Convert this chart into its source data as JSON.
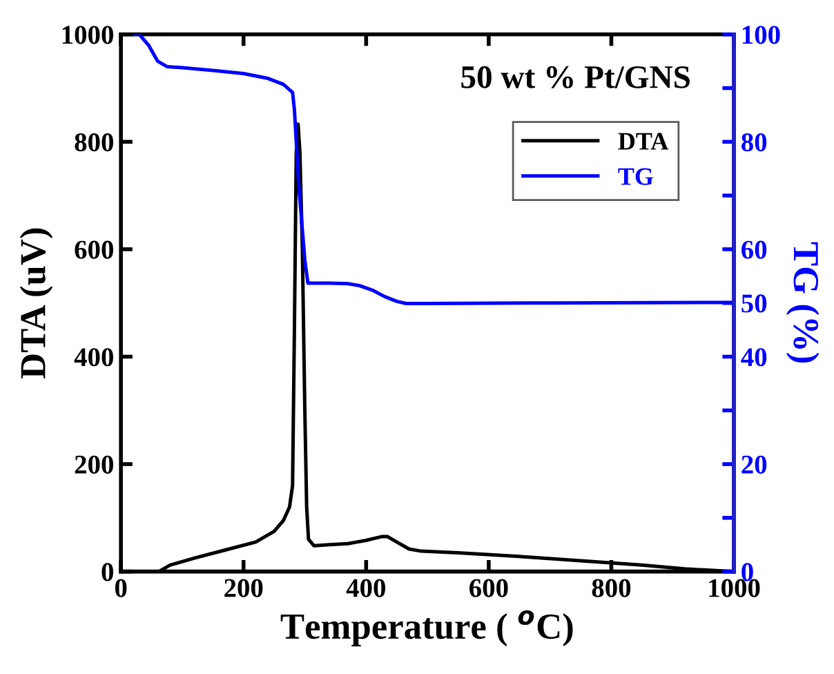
{
  "chart_data": {
    "type": "line",
    "title": "50 wt % Pt/GNS",
    "xlabel": "Temperature ( $^{o}$C)",
    "ylabel": "DTA (uV)",
    "y2label": "TG (%)",
    "xlim": [
      0,
      1000
    ],
    "xticks": [
      0,
      200,
      400,
      600,
      800,
      1000
    ],
    "ylim": [
      0,
      1000
    ],
    "yticks": [
      0,
      200,
      400,
      600,
      800,
      1000
    ],
    "y2lim": [
      0,
      100
    ],
    "y2ticks": [
      0,
      {
        "value": 10,
        "label": null
      },
      20,
      {
        "value": 30,
        "label": null
      },
      40,
      50,
      60,
      {
        "value": 70,
        "label": null
      },
      80,
      {
        "value": 90,
        "label": null
      },
      100
    ],
    "legend": "top right",
    "grid": false,
    "series": [
      {
        "name": "DTA",
        "color": "#000000",
        "x": [
          62,
          80,
          120,
          170,
          220,
          250,
          265,
          275,
          280,
          283,
          286,
          289,
          292,
          296,
          300,
          303,
          306,
          315,
          340,
          370,
          400,
          425,
          435,
          450,
          470,
          490,
          550,
          650,
          750,
          850,
          920,
          1000
        ],
        "values": [
          0,
          12,
          25,
          40,
          55,
          75,
          95,
          120,
          160,
          450,
          780,
          833,
          780,
          600,
          300,
          120,
          60,
          48,
          50,
          52,
          58,
          65,
          65,
          55,
          42,
          38,
          35,
          28,
          20,
          12,
          5,
          0
        ]
      },
      {
        "name": "TG",
        "color": "#0000ff",
        "axis": "y2",
        "x": [
          22,
          30,
          45,
          60,
          75,
          100,
          150,
          200,
          240,
          265,
          280,
          283,
          290,
          300,
          305,
          340,
          370,
          390,
          410,
          430,
          450,
          465,
          500,
          700,
          1000
        ],
        "values": [
          100,
          100,
          98,
          95,
          94,
          93.8,
          93.3,
          92.7,
          91.8,
          90.7,
          89.2,
          86,
          72,
          58,
          53.7,
          53.7,
          53.6,
          53.2,
          52.4,
          51.2,
          50.3,
          49.9,
          49.9,
          50,
          50.1
        ]
      }
    ]
  }
}
